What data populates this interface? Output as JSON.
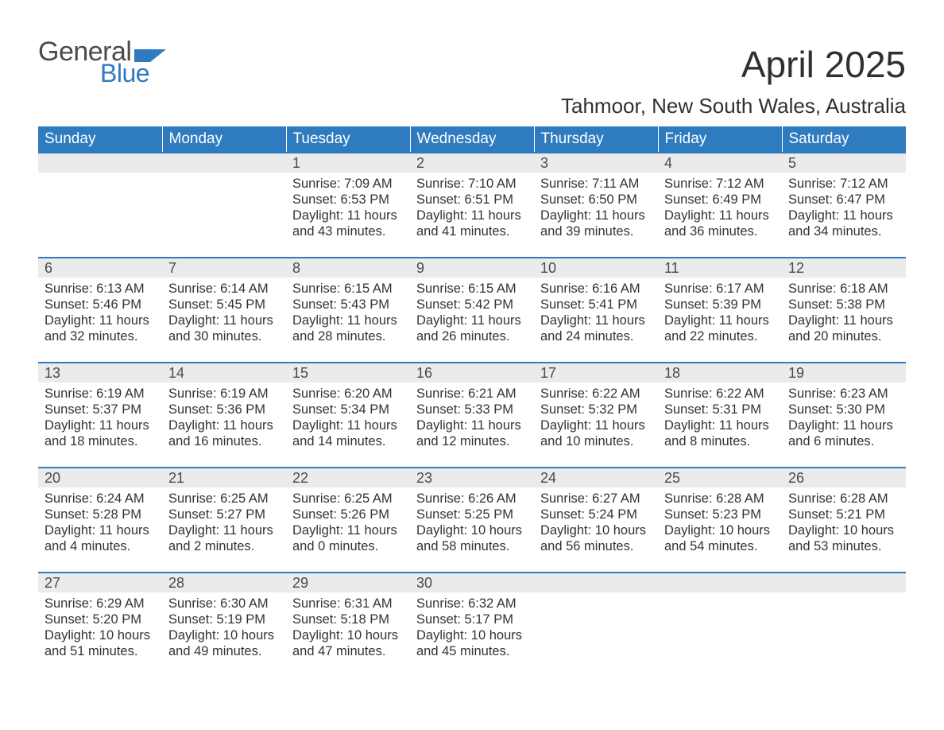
{
  "logo": {
    "text_general": "General",
    "text_blue": "Blue"
  },
  "title": "April 2025",
  "location": "Tahmoor, New South Wales, Australia",
  "colors": {
    "header_bg": "#2f7bbf",
    "header_text": "#ffffff",
    "daynum_bg": "#ebebeb",
    "body_text": "#333333",
    "logo_gray": "#4a4a4a",
    "logo_blue": "#2f7bbf",
    "page_bg": "#ffffff"
  },
  "weekdays": [
    "Sunday",
    "Monday",
    "Tuesday",
    "Wednesday",
    "Thursday",
    "Friday",
    "Saturday"
  ],
  "weeks": [
    [
      null,
      null,
      {
        "n": "1",
        "sunrise": "Sunrise: 7:09 AM",
        "sunset": "Sunset: 6:53 PM",
        "daylight1": "Daylight: 11 hours",
        "daylight2": "and 43 minutes."
      },
      {
        "n": "2",
        "sunrise": "Sunrise: 7:10 AM",
        "sunset": "Sunset: 6:51 PM",
        "daylight1": "Daylight: 11 hours",
        "daylight2": "and 41 minutes."
      },
      {
        "n": "3",
        "sunrise": "Sunrise: 7:11 AM",
        "sunset": "Sunset: 6:50 PM",
        "daylight1": "Daylight: 11 hours",
        "daylight2": "and 39 minutes."
      },
      {
        "n": "4",
        "sunrise": "Sunrise: 7:12 AM",
        "sunset": "Sunset: 6:49 PM",
        "daylight1": "Daylight: 11 hours",
        "daylight2": "and 36 minutes."
      },
      {
        "n": "5",
        "sunrise": "Sunrise: 7:12 AM",
        "sunset": "Sunset: 6:47 PM",
        "daylight1": "Daylight: 11 hours",
        "daylight2": "and 34 minutes."
      }
    ],
    [
      {
        "n": "6",
        "sunrise": "Sunrise: 6:13 AM",
        "sunset": "Sunset: 5:46 PM",
        "daylight1": "Daylight: 11 hours",
        "daylight2": "and 32 minutes."
      },
      {
        "n": "7",
        "sunrise": "Sunrise: 6:14 AM",
        "sunset": "Sunset: 5:45 PM",
        "daylight1": "Daylight: 11 hours",
        "daylight2": "and 30 minutes."
      },
      {
        "n": "8",
        "sunrise": "Sunrise: 6:15 AM",
        "sunset": "Sunset: 5:43 PM",
        "daylight1": "Daylight: 11 hours",
        "daylight2": "and 28 minutes."
      },
      {
        "n": "9",
        "sunrise": "Sunrise: 6:15 AM",
        "sunset": "Sunset: 5:42 PM",
        "daylight1": "Daylight: 11 hours",
        "daylight2": "and 26 minutes."
      },
      {
        "n": "10",
        "sunrise": "Sunrise: 6:16 AM",
        "sunset": "Sunset: 5:41 PM",
        "daylight1": "Daylight: 11 hours",
        "daylight2": "and 24 minutes."
      },
      {
        "n": "11",
        "sunrise": "Sunrise: 6:17 AM",
        "sunset": "Sunset: 5:39 PM",
        "daylight1": "Daylight: 11 hours",
        "daylight2": "and 22 minutes."
      },
      {
        "n": "12",
        "sunrise": "Sunrise: 6:18 AM",
        "sunset": "Sunset: 5:38 PM",
        "daylight1": "Daylight: 11 hours",
        "daylight2": "and 20 minutes."
      }
    ],
    [
      {
        "n": "13",
        "sunrise": "Sunrise: 6:19 AM",
        "sunset": "Sunset: 5:37 PM",
        "daylight1": "Daylight: 11 hours",
        "daylight2": "and 18 minutes."
      },
      {
        "n": "14",
        "sunrise": "Sunrise: 6:19 AM",
        "sunset": "Sunset: 5:36 PM",
        "daylight1": "Daylight: 11 hours",
        "daylight2": "and 16 minutes."
      },
      {
        "n": "15",
        "sunrise": "Sunrise: 6:20 AM",
        "sunset": "Sunset: 5:34 PM",
        "daylight1": "Daylight: 11 hours",
        "daylight2": "and 14 minutes."
      },
      {
        "n": "16",
        "sunrise": "Sunrise: 6:21 AM",
        "sunset": "Sunset: 5:33 PM",
        "daylight1": "Daylight: 11 hours",
        "daylight2": "and 12 minutes."
      },
      {
        "n": "17",
        "sunrise": "Sunrise: 6:22 AM",
        "sunset": "Sunset: 5:32 PM",
        "daylight1": "Daylight: 11 hours",
        "daylight2": "and 10 minutes."
      },
      {
        "n": "18",
        "sunrise": "Sunrise: 6:22 AM",
        "sunset": "Sunset: 5:31 PM",
        "daylight1": "Daylight: 11 hours",
        "daylight2": "and 8 minutes."
      },
      {
        "n": "19",
        "sunrise": "Sunrise: 6:23 AM",
        "sunset": "Sunset: 5:30 PM",
        "daylight1": "Daylight: 11 hours",
        "daylight2": "and 6 minutes."
      }
    ],
    [
      {
        "n": "20",
        "sunrise": "Sunrise: 6:24 AM",
        "sunset": "Sunset: 5:28 PM",
        "daylight1": "Daylight: 11 hours",
        "daylight2": "and 4 minutes."
      },
      {
        "n": "21",
        "sunrise": "Sunrise: 6:25 AM",
        "sunset": "Sunset: 5:27 PM",
        "daylight1": "Daylight: 11 hours",
        "daylight2": "and 2 minutes."
      },
      {
        "n": "22",
        "sunrise": "Sunrise: 6:25 AM",
        "sunset": "Sunset: 5:26 PM",
        "daylight1": "Daylight: 11 hours",
        "daylight2": "and 0 minutes."
      },
      {
        "n": "23",
        "sunrise": "Sunrise: 6:26 AM",
        "sunset": "Sunset: 5:25 PM",
        "daylight1": "Daylight: 10 hours",
        "daylight2": "and 58 minutes."
      },
      {
        "n": "24",
        "sunrise": "Sunrise: 6:27 AM",
        "sunset": "Sunset: 5:24 PM",
        "daylight1": "Daylight: 10 hours",
        "daylight2": "and 56 minutes."
      },
      {
        "n": "25",
        "sunrise": "Sunrise: 6:28 AM",
        "sunset": "Sunset: 5:23 PM",
        "daylight1": "Daylight: 10 hours",
        "daylight2": "and 54 minutes."
      },
      {
        "n": "26",
        "sunrise": "Sunrise: 6:28 AM",
        "sunset": "Sunset: 5:21 PM",
        "daylight1": "Daylight: 10 hours",
        "daylight2": "and 53 minutes."
      }
    ],
    [
      {
        "n": "27",
        "sunrise": "Sunrise: 6:29 AM",
        "sunset": "Sunset: 5:20 PM",
        "daylight1": "Daylight: 10 hours",
        "daylight2": "and 51 minutes."
      },
      {
        "n": "28",
        "sunrise": "Sunrise: 6:30 AM",
        "sunset": "Sunset: 5:19 PM",
        "daylight1": "Daylight: 10 hours",
        "daylight2": "and 49 minutes."
      },
      {
        "n": "29",
        "sunrise": "Sunrise: 6:31 AM",
        "sunset": "Sunset: 5:18 PM",
        "daylight1": "Daylight: 10 hours",
        "daylight2": "and 47 minutes."
      },
      {
        "n": "30",
        "sunrise": "Sunrise: 6:32 AM",
        "sunset": "Sunset: 5:17 PM",
        "daylight1": "Daylight: 10 hours",
        "daylight2": "and 45 minutes."
      },
      null,
      null,
      null
    ]
  ]
}
